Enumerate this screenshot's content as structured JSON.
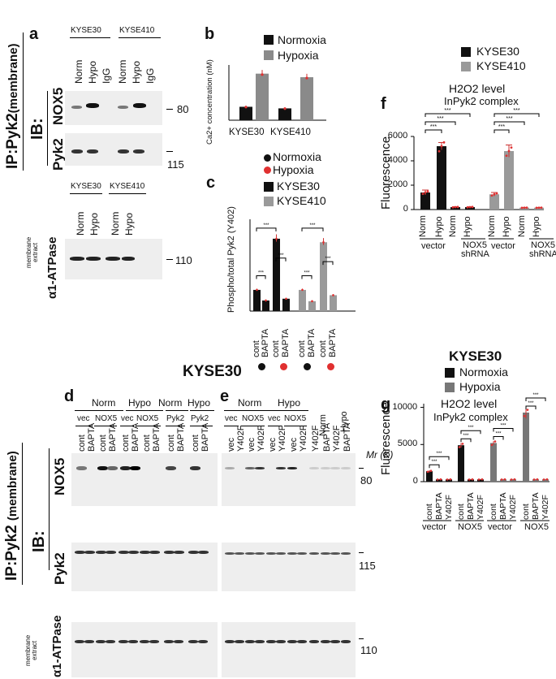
{
  "panel_a": {
    "letter": "a",
    "ip_label": "IP:Pyk2",
    "ip_sub": "(membrane)",
    "ib_label": "IB:",
    "cell_lines_top": [
      "KYSE30",
      "KYSE410"
    ],
    "lanes_top": [
      "Norm",
      "Hypo",
      "IgG",
      "Norm",
      "Hypo",
      "IgG"
    ],
    "rows": [
      "NOX5",
      "Pyk2"
    ],
    "mw": [
      "80",
      "115"
    ],
    "cell_lines_bottom": [
      "KYSE30",
      "KYSE410"
    ],
    "lanes_bottom": [
      "Norm",
      "Hypo",
      "Norm",
      "Hypo"
    ],
    "extract_label": [
      "membrane",
      "extract"
    ],
    "atpase_label": "α1-ATPase",
    "atpase_mw": "110"
  },
  "panel_b": {
    "letter": "b",
    "legend": [
      "Normoxia",
      "Hypoxia"
    ],
    "ylabel": "Ca2+ concentration (nM)",
    "categories": [
      "KYSE30",
      "KYSE410"
    ]
  },
  "panel_c": {
    "letter": "c",
    "legend_dots": [
      "Normoxia",
      "Hypoxia"
    ],
    "legend_bars": [
      "KYSE30",
      "KYSE410"
    ],
    "ylabel": "Phospho/total Pyk2 (Y402)",
    "xlabels": [
      "cont",
      "BAPTA",
      "cont",
      "BAPTA",
      "cont",
      "BAPTA",
      "cont",
      "BAPTA"
    ],
    "sig": "***"
  },
  "panel_f": {
    "letter": "f",
    "legend": [
      "KYSE30",
      "KYSE410"
    ],
    "title1": "H2O2 level",
    "title2": "InPyk2 complex",
    "ylabel": "Fluorescence",
    "yticks": [
      "0",
      "2000",
      "4000",
      "6000"
    ],
    "xlabels": [
      "Norm",
      "Hypo",
      "Norm",
      "Hypo",
      "Norm",
      "Hypo",
      "Norm",
      "Hypo"
    ],
    "groups": [
      "vector",
      "NOX5",
      "shRNA",
      "vector",
      "NOX5",
      "shRNA"
    ],
    "sig": "***"
  },
  "panel_g": {
    "letter": "g",
    "cell_line": "KYSE30",
    "legend": [
      "Normoxia",
      "Hypoxia"
    ],
    "title1": "H2O2 level",
    "title2": "InPyk2 complex",
    "ylabel": "Fluorescence",
    "yticks": [
      "0",
      "5000",
      "10000"
    ],
    "xlabels": [
      "cont",
      "BAPTA",
      "Y402F",
      "cont",
      "BAPTA",
      "Y402F",
      "cont",
      "BAPTA",
      "Y402F",
      "cont",
      "BAPTA",
      "Y402F"
    ],
    "groups": [
      "vector",
      "NOX5",
      "vector",
      "NOX5"
    ],
    "sig": "***"
  },
  "panel_de": {
    "title": "KYSE30",
    "letter_d": "d",
    "letter_e": "e",
    "ip_label": "IP:Pyk2",
    "ip_sub": "(membrane)",
    "ib_label": "IB:",
    "rows": [
      "NOX5",
      "Pyk2",
      "α1-ATPase"
    ],
    "extract_label": [
      "membrane",
      "extract"
    ],
    "mr_label": "Mr (K)",
    "mw": [
      "80",
      "115",
      "110"
    ],
    "d_conditions": [
      "Norm",
      "Hypo",
      "Norm",
      "Hypo"
    ],
    "d_constructs": [
      "vec",
      "NOX5",
      "vec",
      "NOX5",
      "Pyk2",
      "Pyk2"
    ],
    "d_lanes": [
      "cont",
      "BAPTA",
      "cont",
      "BAPTA",
      "cont",
      "BAPTA",
      "cont",
      "BAPTA",
      "cont",
      "BAPTA",
      "cont",
      "BAPTA"
    ],
    "e_conditions": [
      "Norm",
      "Hypo",
      "Norm",
      "Hypo"
    ],
    "e_constructs": [
      "vec",
      "NOX5",
      "vec",
      "NOX5"
    ],
    "e_lanes": [
      "vec",
      "Y402F",
      "vec",
      "Y402F",
      "vec",
      "Y402F",
      "vec",
      "Y402F",
      "Y402F",
      "BAPTA",
      "Y402F",
      "BAPTA"
    ]
  },
  "chart_data": [
    {
      "type": "bar",
      "panel": "b",
      "categories": [
        "KYSE30",
        "KYSE410"
      ],
      "series": [
        {
          "name": "Normoxia",
          "values": [
            170,
            150
          ]
        },
        {
          "name": "Hypoxia",
          "values": [
            590,
            545
          ]
        }
      ],
      "ylabel": "Ca2+ concentration (nM)",
      "colors": [
        "#111111",
        "#8a8a8a"
      ]
    },
    {
      "type": "bar",
      "panel": "c",
      "categories": [
        "cont",
        "BAPTA",
        "cont",
        "BAPTA",
        "cont",
        "BAPTA",
        "cont",
        "BAPTA"
      ],
      "values": [
        0.6,
        0.3,
        2.05,
        0.35,
        0.6,
        0.28,
        1.95,
        0.45
      ],
      "ylabel": "Phospho/total Pyk2 (Y402)",
      "colors": [
        "#111111",
        "#111111",
        "#111111",
        "#111111",
        "#9a9a9a",
        "#9a9a9a",
        "#9a9a9a",
        "#9a9a9a"
      ]
    },
    {
      "type": "bar",
      "panel": "f",
      "categories": [
        "Norm",
        "Hypo",
        "Norm",
        "Hypo",
        "Norm",
        "Hypo",
        "Norm",
        "Hypo"
      ],
      "values": [
        1400,
        5200,
        200,
        200,
        1250,
        4800,
        150,
        150
      ],
      "errors": [
        200,
        300,
        30,
        30,
        150,
        500,
        20,
        20
      ],
      "ylabel": "Fluorescence",
      "ylim": [
        0,
        6000
      ],
      "colors": [
        "#111111",
        "#111111",
        "#111111",
        "#111111",
        "#9a9a9a",
        "#9a9a9a",
        "#9a9a9a",
        "#9a9a9a"
      ]
    },
    {
      "type": "bar",
      "panel": "g",
      "categories": [
        "cont",
        "BAPTA",
        "Y402F",
        "cont",
        "BAPTA",
        "Y402F",
        "cont",
        "BAPTA",
        "Y402F",
        "cont",
        "BAPTA",
        "Y402F"
      ],
      "values": [
        1400,
        300,
        300,
        4900,
        300,
        300,
        5200,
        300,
        300,
        9300,
        300,
        300
      ],
      "errors": [
        150,
        50,
        50,
        300,
        50,
        50,
        250,
        50,
        50,
        800,
        50,
        50
      ],
      "ylabel": "Fluorescence",
      "ylim": [
        0,
        10000
      ],
      "colors": [
        "#111111",
        "#111111",
        "#111111",
        "#111111",
        "#111111",
        "#111111",
        "#777777",
        "#777777",
        "#777777",
        "#777777",
        "#777777",
        "#777777"
      ]
    }
  ]
}
